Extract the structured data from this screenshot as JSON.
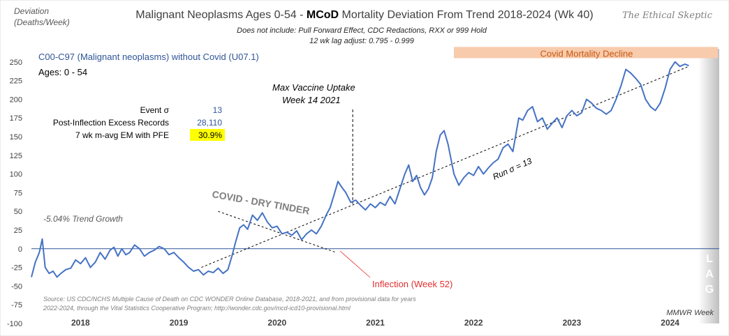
{
  "page": {
    "title_prefix": "Malignant Neoplasms Ages 0-54 - ",
    "title_bold": "MCoD",
    "title_suffix": " Mortality Deviation From Trend  2018-2024 (Wk 40)",
    "subtitle_1": "Does not include: Pull Forward Effect,  CDC Redactions, RXX or 999 Hold",
    "subtitle_2": "12 wk lag adjust: 0.795 - 0.999",
    "watermark": "The Ethical Skeptic",
    "y_axis_label_1": "Deviation",
    "y_axis_label_2": "(Deaths/Week)",
    "series_label": "C00-C97 (Malignant neoplasms) without Covid (U07.1)",
    "ages_label": "Ages: 0 - 54",
    "stats": [
      {
        "label": "Event σ",
        "value": "13",
        "highlight": false
      },
      {
        "label": "Post-Inflection Excess Records",
        "value": "28,110",
        "highlight": false
      },
      {
        "label": "7 wk m-avg EM with PFE",
        "value": "30.9%",
        "highlight": true
      }
    ],
    "decline_band_label": "Covid Mortality Decline",
    "vaccine_annotation_1": "Max Vaccine Uptake",
    "vaccine_annotation_2": "Week 14 2021",
    "dry_tinder_label": "COVID - DRY TINDER",
    "trend_growth_label": "-5.04% Trend Growth",
    "run_sigma_label": "Run σ = 13",
    "inflection_label": "Inflection (Week 52)",
    "lag_label": [
      "L",
      "A",
      "G"
    ],
    "source_1": "Source: US CDC/NCHS Multiple Cause of Death on CDC WONDER Online Database, 2018-2021, and from provisional data for years",
    "source_2": "2022-2024, through the Vital Statistics Cooperative Program; http://wonder.cdc.gov/mcd-icd10-provisional.html",
    "mmwr_label": "MMWR Week",
    "colors": {
      "series": "#4472c4",
      "zero_line": "#2f5597",
      "band": "#f8cbad",
      "band_text": "#c55a11",
      "inflection": "#e03030",
      "highlight": "#ffff00",
      "stat_value": "#2f5597"
    }
  },
  "chart_data": {
    "type": "line",
    "x_categories": [
      "2018",
      "2019",
      "2020",
      "2021",
      "2022",
      "2023",
      "2024"
    ],
    "ylim": [
      -100,
      275
    ],
    "yticks": [
      -100,
      -75,
      -50,
      -25,
      0,
      25,
      50,
      75,
      100,
      125,
      150,
      175,
      200,
      225,
      250
    ],
    "grid": false,
    "series": [
      {
        "name": "C00-C97 (Malignant neoplasms) without Covid (U07.1)",
        "points": [
          [
            2018.0,
            -38
          ],
          [
            2018.04,
            -18
          ],
          [
            2018.08,
            -5
          ],
          [
            2018.11,
            13
          ],
          [
            2018.14,
            -25
          ],
          [
            2018.18,
            -33
          ],
          [
            2018.22,
            -30
          ],
          [
            2018.26,
            -38
          ],
          [
            2018.3,
            -33
          ],
          [
            2018.35,
            -28
          ],
          [
            2018.4,
            -26
          ],
          [
            2018.45,
            -15
          ],
          [
            2018.5,
            -20
          ],
          [
            2018.55,
            -12
          ],
          [
            2018.6,
            -25
          ],
          [
            2018.65,
            -18
          ],
          [
            2018.7,
            -5
          ],
          [
            2018.75,
            -14
          ],
          [
            2018.8,
            -2
          ],
          [
            2018.84,
            2
          ],
          [
            2018.88,
            -10
          ],
          [
            2018.92,
            0
          ],
          [
            2018.96,
            -8
          ],
          [
            2019.0,
            -5
          ],
          [
            2019.05,
            5
          ],
          [
            2019.1,
            0
          ],
          [
            2019.15,
            -10
          ],
          [
            2019.2,
            -5
          ],
          [
            2019.25,
            -2
          ],
          [
            2019.3,
            3
          ],
          [
            2019.35,
            0
          ],
          [
            2019.4,
            -8
          ],
          [
            2019.45,
            -5
          ],
          [
            2019.5,
            -12
          ],
          [
            2019.55,
            -18
          ],
          [
            2019.6,
            -25
          ],
          [
            2019.65,
            -30
          ],
          [
            2019.7,
            -28
          ],
          [
            2019.75,
            -35
          ],
          [
            2019.8,
            -30
          ],
          [
            2019.85,
            -32
          ],
          [
            2019.9,
            -26
          ],
          [
            2019.95,
            -33
          ],
          [
            2020.0,
            -28
          ],
          [
            2020.04,
            -10
          ],
          [
            2020.08,
            10
          ],
          [
            2020.12,
            28
          ],
          [
            2020.16,
            32
          ],
          [
            2020.2,
            26
          ],
          [
            2020.25,
            45
          ],
          [
            2020.3,
            38
          ],
          [
            2020.35,
            48
          ],
          [
            2020.4,
            36
          ],
          [
            2020.45,
            28
          ],
          [
            2020.5,
            30
          ],
          [
            2020.55,
            20
          ],
          [
            2020.6,
            22
          ],
          [
            2020.65,
            18
          ],
          [
            2020.7,
            24
          ],
          [
            2020.75,
            12
          ],
          [
            2020.8,
            20
          ],
          [
            2020.85,
            25
          ],
          [
            2020.9,
            20
          ],
          [
            2020.95,
            30
          ],
          [
            2021.0,
            45
          ],
          [
            2021.04,
            55
          ],
          [
            2021.08,
            72
          ],
          [
            2021.12,
            90
          ],
          [
            2021.16,
            82
          ],
          [
            2021.2,
            75
          ],
          [
            2021.25,
            62
          ],
          [
            2021.3,
            65
          ],
          [
            2021.35,
            58
          ],
          [
            2021.4,
            52
          ],
          [
            2021.45,
            60
          ],
          [
            2021.5,
            55
          ],
          [
            2021.55,
            62
          ],
          [
            2021.6,
            58
          ],
          [
            2021.65,
            70
          ],
          [
            2021.7,
            60
          ],
          [
            2021.75,
            80
          ],
          [
            2021.8,
            100
          ],
          [
            2021.84,
            112
          ],
          [
            2021.88,
            90
          ],
          [
            2021.92,
            98
          ],
          [
            2021.96,
            82
          ],
          [
            2022.0,
            72
          ],
          [
            2022.04,
            80
          ],
          [
            2022.08,
            95
          ],
          [
            2022.12,
            130
          ],
          [
            2022.16,
            152
          ],
          [
            2022.2,
            158
          ],
          [
            2022.24,
            140
          ],
          [
            2022.3,
            100
          ],
          [
            2022.35,
            85
          ],
          [
            2022.4,
            95
          ],
          [
            2022.45,
            102
          ],
          [
            2022.5,
            98
          ],
          [
            2022.55,
            110
          ],
          [
            2022.6,
            100
          ],
          [
            2022.65,
            108
          ],
          [
            2022.7,
            115
          ],
          [
            2022.75,
            120
          ],
          [
            2022.8,
            135
          ],
          [
            2022.85,
            140
          ],
          [
            2022.9,
            130
          ],
          [
            2022.96,
            175
          ],
          [
            2023.0,
            172
          ],
          [
            2023.05,
            185
          ],
          [
            2023.1,
            190
          ],
          [
            2023.15,
            170
          ],
          [
            2023.2,
            175
          ],
          [
            2023.25,
            160
          ],
          [
            2023.3,
            168
          ],
          [
            2023.35,
            175
          ],
          [
            2023.4,
            162
          ],
          [
            2023.45,
            178
          ],
          [
            2023.5,
            185
          ],
          [
            2023.55,
            178
          ],
          [
            2023.6,
            182
          ],
          [
            2023.65,
            200
          ],
          [
            2023.7,
            195
          ],
          [
            2023.75,
            188
          ],
          [
            2023.8,
            185
          ],
          [
            2023.85,
            180
          ],
          [
            2023.9,
            185
          ],
          [
            2023.95,
            200
          ],
          [
            2024.0,
            218
          ],
          [
            2024.05,
            240
          ],
          [
            2024.1,
            235
          ],
          [
            2024.15,
            228
          ],
          [
            2024.2,
            220
          ],
          [
            2024.25,
            200
          ],
          [
            2024.3,
            190
          ],
          [
            2024.35,
            185
          ],
          [
            2024.4,
            195
          ],
          [
            2024.45,
            215
          ],
          [
            2024.5,
            240
          ],
          [
            2024.55,
            250
          ],
          [
            2024.6,
            244
          ],
          [
            2024.65,
            247
          ],
          [
            2024.69,
            245
          ]
        ]
      }
    ],
    "trend_line": {
      "from": [
        2019.73,
        -25
      ],
      "to": [
        2024.69,
        244
      ]
    },
    "pre_trend_line": {
      "from": [
        2019.9,
        50
      ],
      "to": [
        2021.1,
        -5
      ]
    },
    "vaccine_marker_x": 2021.27,
    "decline_band": {
      "x_from": 2023.75,
      "x_to": 2024.75,
      "y_from": 255,
      "y_to": 270
    }
  }
}
